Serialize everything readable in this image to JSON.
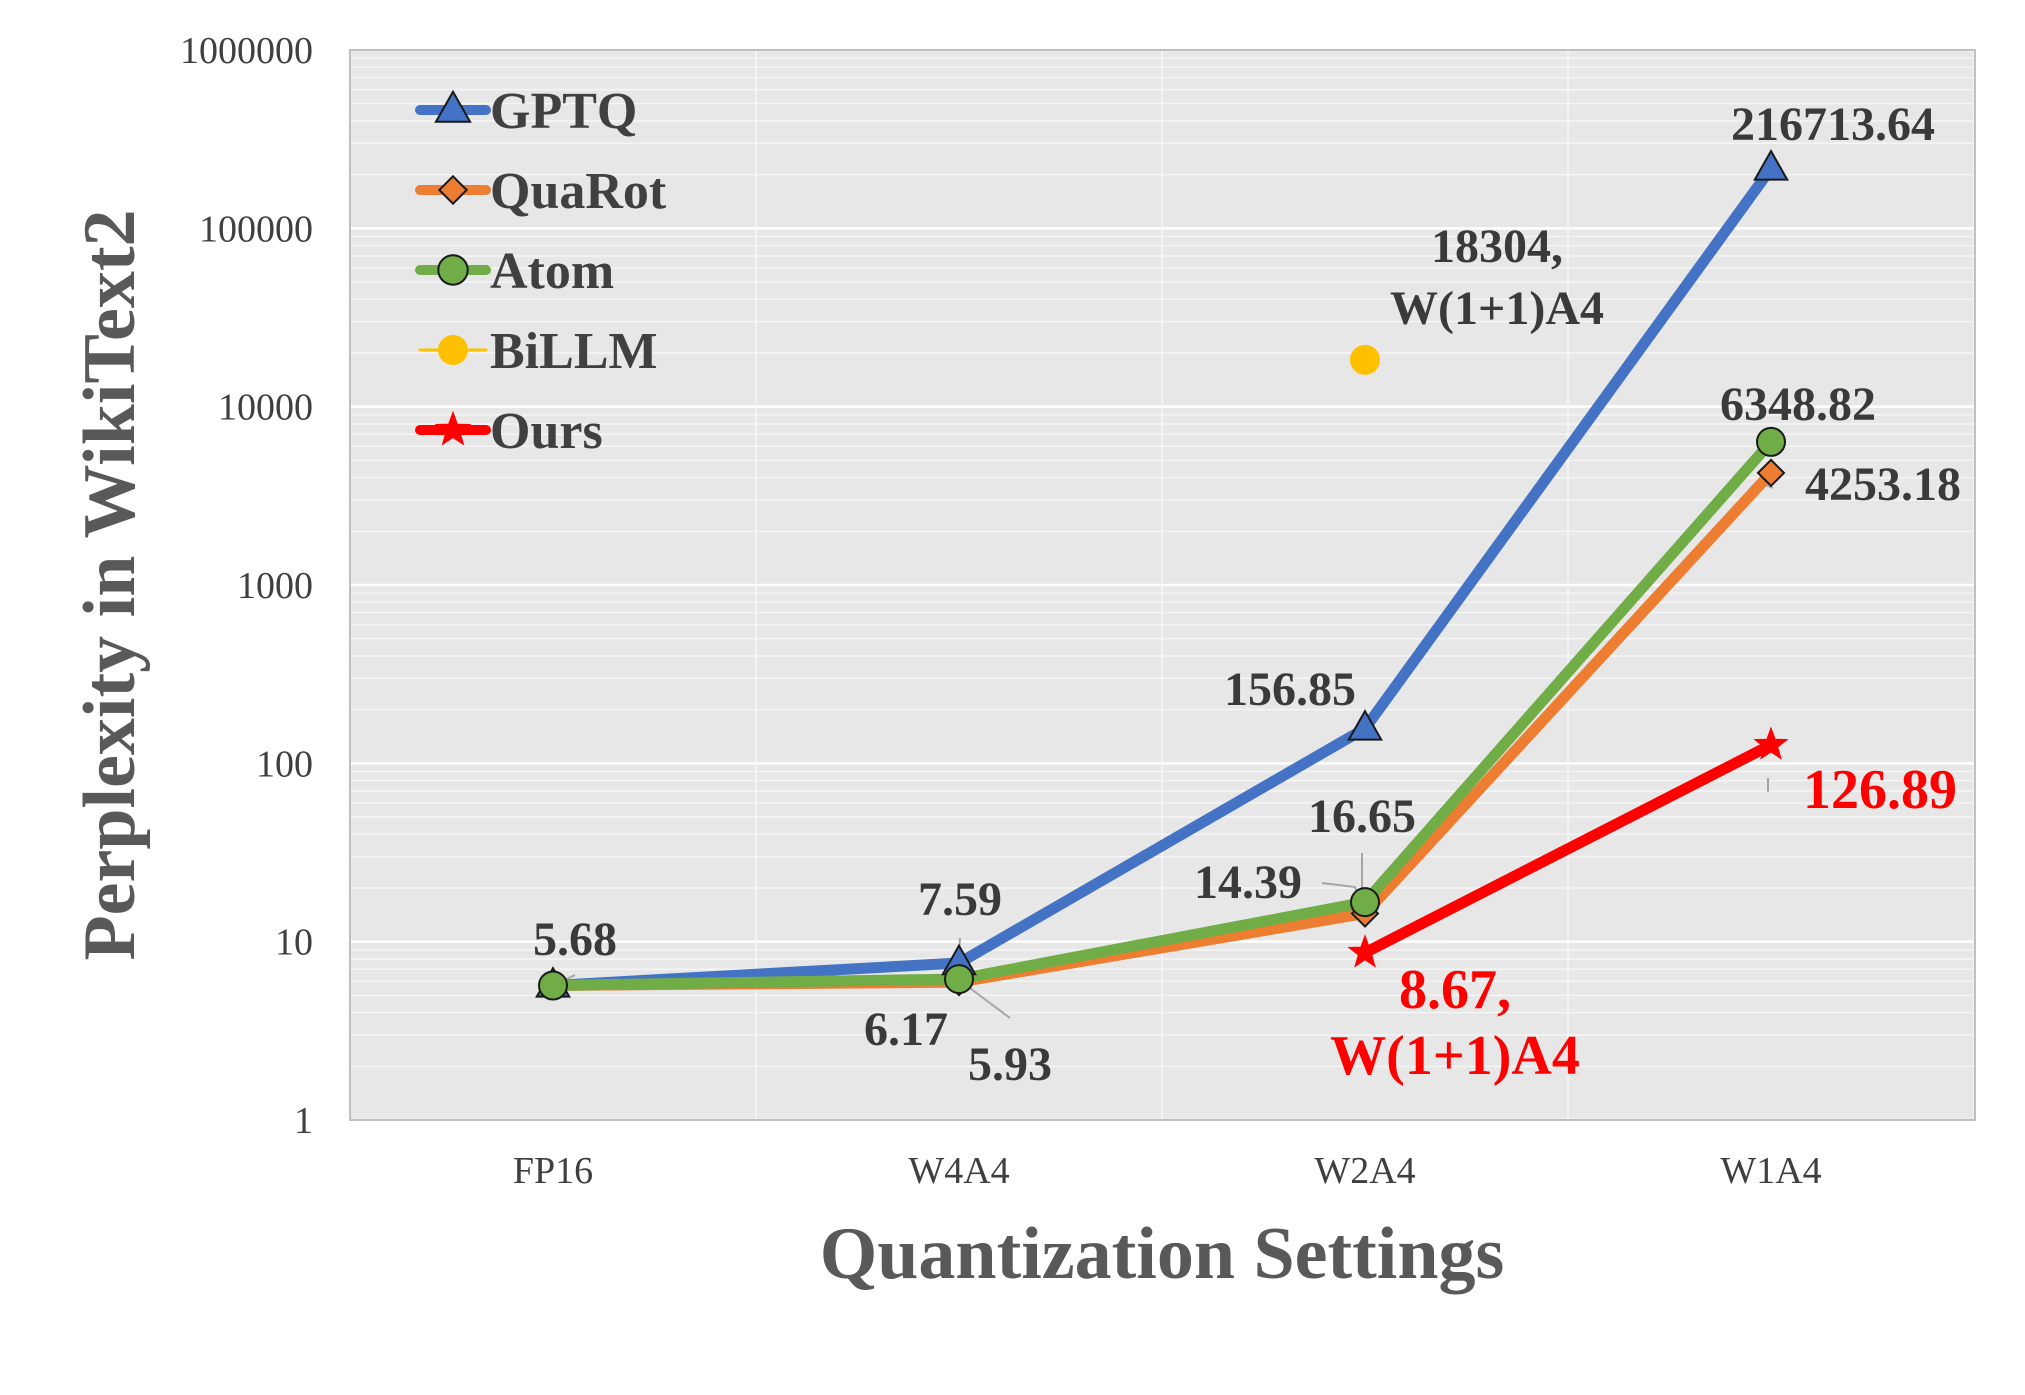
{
  "chart_data": {
    "type": "line",
    "xlabel": "Quantization Settings",
    "ylabel": "Perplexity in WikiText2",
    "y_scale": "log",
    "ylim": [
      1,
      1000000
    ],
    "y_ticks": [
      "1",
      "10",
      "100",
      "1000",
      "10000",
      "100000",
      "1000000"
    ],
    "categories": [
      "FP16",
      "W4A4",
      "W2A4",
      "W1A4"
    ],
    "grid": true,
    "legend_position": "top-left",
    "series": [
      {
        "name": "GPTQ",
        "color": "#4472c4",
        "marker": "triangle",
        "values": [
          5.68,
          7.59,
          156.85,
          216713.64
        ]
      },
      {
        "name": "QuaRot",
        "color": "#ed7d31",
        "marker": "diamond",
        "values": [
          5.68,
          5.93,
          14.39,
          4253.18
        ]
      },
      {
        "name": "Atom",
        "color": "#70ad47",
        "marker": "circle",
        "values": [
          5.68,
          6.17,
          16.65,
          6348.82
        ]
      },
      {
        "name": "BiLLM",
        "color": "#ffc000",
        "marker": "circle",
        "values": [
          null,
          null,
          18304,
          null
        ]
      },
      {
        "name": "Ours",
        "color": "#ff0000",
        "marker": "star",
        "values": [
          null,
          null,
          8.67,
          126.89
        ]
      }
    ],
    "annotations": [
      {
        "text": "5.68",
        "series": "Atom",
        "category": "FP16"
      },
      {
        "text": "7.59",
        "series": "GPTQ",
        "category": "W4A4"
      },
      {
        "text": "6.17",
        "series": "Atom",
        "category": "W4A4"
      },
      {
        "text": "5.93",
        "series": "QuaRot",
        "category": "W4A4"
      },
      {
        "text": "156.85",
        "series": "GPTQ",
        "category": "W2A4"
      },
      {
        "text": "16.65",
        "series": "Atom",
        "category": "W2A4"
      },
      {
        "text": "14.39",
        "series": "QuaRot",
        "category": "W2A4"
      },
      {
        "text": "18304,",
        "text2": "W(1+1)A4",
        "series": "BiLLM",
        "category": "W2A4"
      },
      {
        "text": "8.67,",
        "text2": "W(1+1)A4",
        "series": "Ours",
        "category": "W2A4"
      },
      {
        "text": "216713.64",
        "series": "GPTQ",
        "category": "W1A4"
      },
      {
        "text": "6348.82",
        "series": "Atom",
        "category": "W1A4"
      },
      {
        "text": "4253.18",
        "series": "QuaRot",
        "category": "W1A4"
      },
      {
        "text": "126.89",
        "series": "Ours",
        "category": "W1A4"
      }
    ]
  }
}
